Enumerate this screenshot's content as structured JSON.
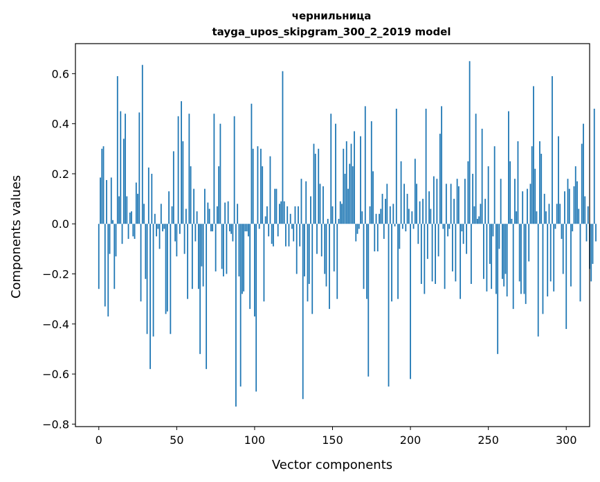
{
  "chart_data": {
    "type": "bar",
    "title": "чернильница",
    "subtitle": "tayga_upos_skipgram_300_2_2019 model",
    "xlabel": "Vector components",
    "ylabel": "Components values",
    "xlim": [
      -15,
      315
    ],
    "ylim": [
      -0.81,
      0.72
    ],
    "xticks": [
      0,
      50,
      100,
      150,
      200,
      250,
      300
    ],
    "yticks": [
      -0.8,
      -0.6,
      -0.4,
      -0.2,
      0.0,
      0.2,
      0.4,
      0.6
    ],
    "ytick_labels": [
      "−0.8",
      "−0.6",
      "−0.4",
      "−0.2",
      "0.0",
      "0.2",
      "0.4",
      "0.6"
    ],
    "bar_color": "#1f77b4",
    "values": [
      -0.26,
      0.185,
      0.3,
      0.31,
      -0.33,
      0.175,
      -0.37,
      -0.12,
      0.185,
      0.015,
      -0.26,
      -0.13,
      0.59,
      0.11,
      0.45,
      -0.08,
      0.34,
      0.44,
      0.11,
      -0.06,
      0.045,
      0.05,
      -0.05,
      -0.06,
      0.165,
      0.12,
      0.445,
      -0.31,
      0.635,
      0.08,
      -0.22,
      -0.44,
      0.225,
      -0.58,
      0.2,
      -0.45,
      0.04,
      -0.05,
      -0.02,
      -0.1,
      0.08,
      -0.03,
      -0.02,
      -0.36,
      -0.35,
      0.13,
      -0.44,
      0.07,
      0.29,
      -0.07,
      -0.13,
      0.43,
      -0.04,
      0.49,
      0.33,
      -0.12,
      0.06,
      -0.3,
      0.44,
      0.23,
      -0.26,
      0.14,
      -0.07,
      0.05,
      -0.26,
      -0.52,
      -0.17,
      -0.25,
      0.14,
      -0.58,
      0.085,
      0.06,
      -0.03,
      -0.03,
      0.44,
      -0.19,
      0.07,
      0.23,
      0.4,
      -0.18,
      -0.21,
      0.085,
      -0.2,
      0.09,
      -0.03,
      -0.04,
      -0.07,
      0.43,
      -0.73,
      0.08,
      -0.21,
      -0.65,
      -0.28,
      -0.27,
      -0.03,
      -0.03,
      -0.05,
      -0.34,
      0.48,
      0.3,
      -0.37,
      -0.67,
      0.31,
      -0.02,
      0.3,
      0.23,
      -0.31,
      0.03,
      0.07,
      -0.05,
      0.27,
      -0.08,
      -0.09,
      0.14,
      0.14,
      -0.05,
      0.08,
      0.09,
      0.61,
      0.09,
      -0.09,
      0.07,
      -0.09,
      0.04,
      -0.02,
      -0.07,
      0.07,
      -0.2,
      0.07,
      -0.09,
      0.18,
      -0.7,
      -0.21,
      0.17,
      -0.31,
      -0.24,
      0.11,
      -0.36,
      0.32,
      0.28,
      -0.12,
      0.3,
      0.16,
      -0.13,
      0.15,
      -0.2,
      -0.25,
      0.02,
      -0.34,
      0.44,
      0.07,
      -0.19,
      0.4,
      -0.3,
      0.02,
      0.09,
      0.08,
      0.3,
      0.2,
      0.33,
      0.14,
      0.24,
      0.32,
      0.23,
      0.37,
      -0.07,
      -0.04,
      -0.02,
      0.35,
      0.05,
      -0.26,
      0.47,
      -0.3,
      -0.61,
      0.07,
      0.41,
      0.21,
      -0.11,
      0.04,
      -0.11,
      0.04,
      0.06,
      0.12,
      -0.06,
      0.1,
      0.16,
      -0.65,
      0.07,
      -0.31,
      0.08,
      -0.01,
      0.46,
      -0.3,
      -0.1,
      0.25,
      -0.02,
      0.16,
      -0.03,
      0.12,
      0.06,
      -0.62,
      0.05,
      -0.02,
      0.26,
      0.16,
      -0.08,
      0.09,
      -0.24,
      0.1,
      -0.28,
      0.46,
      -0.14,
      0.13,
      0.06,
      -0.23,
      0.19,
      -0.24,
      0.18,
      -0.13,
      0.36,
      0.47,
      -0.02,
      -0.26,
      0.16,
      -0.05,
      -0.02,
      0.16,
      -0.19,
      0.1,
      -0.23,
      0.18,
      0.15,
      -0.3,
      -0.03,
      -0.08,
      0.18,
      -0.12,
      0.25,
      0.65,
      -0.24,
      0.2,
      0.07,
      0.44,
      0.02,
      0.03,
      0.08,
      0.38,
      -0.22,
      0.1,
      -0.27,
      0.23,
      -0.16,
      -0.26,
      -0.05,
      0.31,
      -0.28,
      -0.52,
      -0.1,
      0.18,
      -0.22,
      -0.25,
      -0.2,
      -0.29,
      0.45,
      0.25,
      0.02,
      -0.34,
      0.18,
      0.05,
      0.33,
      -0.23,
      -0.28,
      0.13,
      -0.28,
      -0.32,
      0.14,
      -0.15,
      0.16,
      0.31,
      0.55,
      0.22,
      0.05,
      -0.45,
      0.33,
      0.28,
      -0.36,
      0.12,
      0.05,
      -0.29,
      0.08,
      -0.23,
      0.59,
      -0.27,
      -0.02,
      0.08,
      0.35,
      0.08,
      -0.06,
      -0.2,
      0.13,
      -0.42,
      0.18,
      0.14,
      -0.25,
      -0.03,
      0.15,
      0.23,
      0.17,
      0.06,
      -0.31,
      0.32,
      0.4,
      0.11,
      -0.07,
      0.07,
      -0.18,
      -0.23,
      -0.16,
      0.46,
      -0.07
    ]
  }
}
